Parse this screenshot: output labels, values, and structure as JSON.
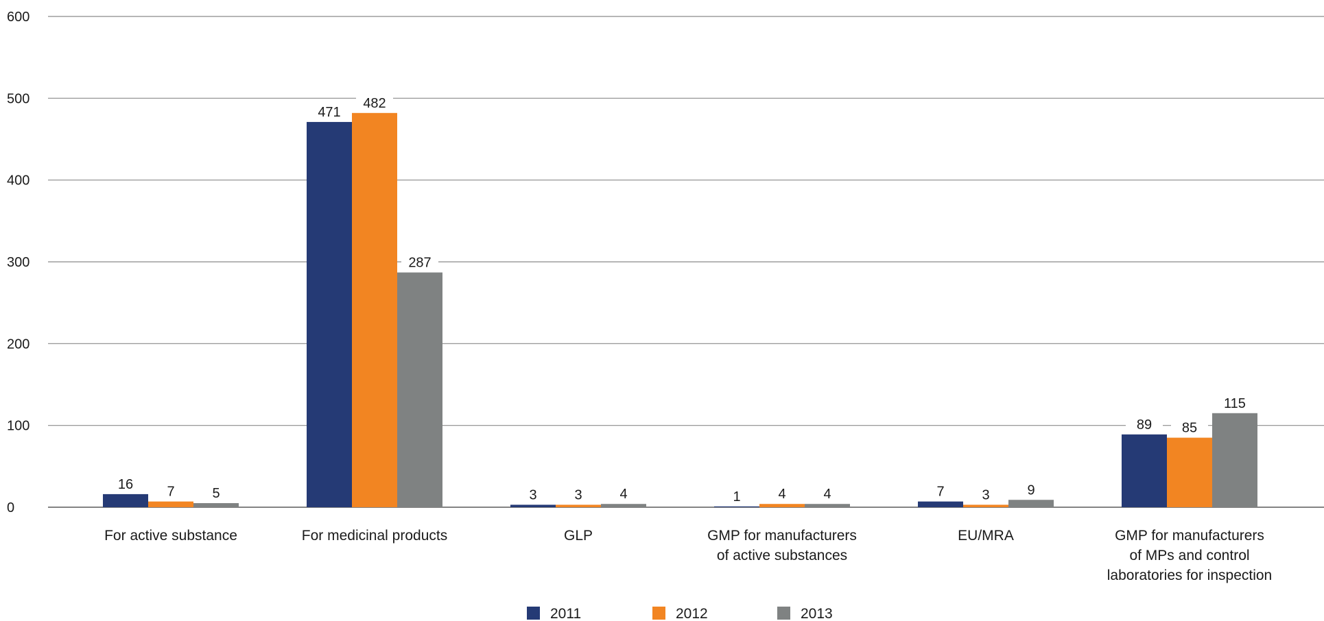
{
  "chart_data": {
    "type": "bar",
    "title": "",
    "xlabel": "",
    "ylabel": "",
    "ylim": [
      0,
      600
    ],
    "yticks": [
      0,
      100,
      200,
      300,
      400,
      500,
      600
    ],
    "grid": true,
    "legend_position": "bottom",
    "categories": [
      [
        "For active substance"
      ],
      [
        "For medicinal products"
      ],
      [
        "GLP"
      ],
      [
        "GMP for manufacturers",
        "of active substances"
      ],
      [
        "EU/MRA"
      ],
      [
        "GMP for manufacturers",
        "of MPs and control",
        "laboratories for inspection"
      ]
    ],
    "series": [
      {
        "name": "2011",
        "color": "#253a75",
        "values": [
          16,
          471,
          3,
          1,
          7,
          89
        ]
      },
      {
        "name": "2012",
        "color": "#f28522",
        "values": [
          7,
          482,
          3,
          4,
          3,
          85
        ]
      },
      {
        "name": "2013",
        "color": "#7f8282",
        "values": [
          5,
          287,
          4,
          4,
          9,
          115
        ]
      }
    ]
  }
}
